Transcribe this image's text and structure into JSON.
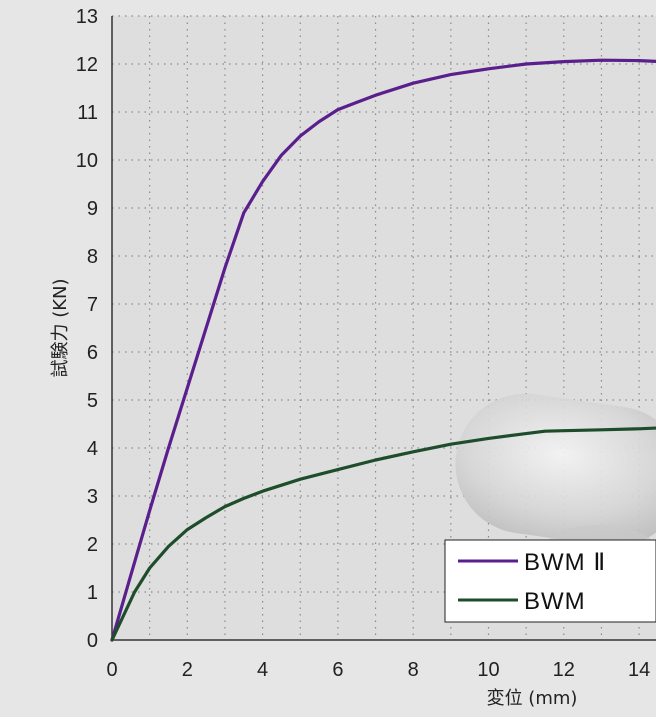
{
  "chart_data": {
    "type": "line",
    "xlabel": "変位 (mm)",
    "ylabel": "試験力 (KN)",
    "xlim": [
      0,
      14.6
    ],
    "ylim": [
      0,
      13
    ],
    "x_ticks": [
      "0",
      "2",
      "4",
      "6",
      "8",
      "10",
      "12",
      "14"
    ],
    "y_ticks": [
      "0",
      "1",
      "2",
      "3",
      "4",
      "5",
      "6",
      "7",
      "8",
      "9",
      "10",
      "11",
      "12",
      "13"
    ],
    "grid": true,
    "legend_position": "bottom-right",
    "series": [
      {
        "name": "BWM Ⅱ",
        "color": "#5a1f8c",
        "x": [
          0,
          0.5,
          1.0,
          1.5,
          2.0,
          2.5,
          3.0,
          3.5,
          4.0,
          4.5,
          5.0,
          5.5,
          6.0,
          6.5,
          7.0,
          8.0,
          9.0,
          10.0,
          11.0,
          12.0,
          13.0,
          14.0,
          14.6
        ],
        "y": [
          0,
          1.35,
          2.7,
          4.0,
          5.25,
          6.5,
          7.75,
          8.9,
          9.55,
          10.1,
          10.5,
          10.8,
          11.05,
          11.2,
          11.35,
          11.6,
          11.78,
          11.9,
          12.0,
          12.05,
          12.08,
          12.07,
          12.05
        ]
      },
      {
        "name": "BWM",
        "color": "#1e4d2b",
        "x": [
          0,
          0.3,
          0.6,
          1.0,
          1.5,
          2.0,
          2.5,
          3.0,
          3.5,
          4.0,
          5.0,
          6.0,
          7.0,
          8.0,
          9.0,
          10.0,
          11.0,
          11.5,
          12.0,
          13.0,
          14.0,
          14.6
        ],
        "y": [
          0,
          0.5,
          1.0,
          1.5,
          1.95,
          2.3,
          2.55,
          2.78,
          2.95,
          3.1,
          3.35,
          3.55,
          3.75,
          3.92,
          4.08,
          4.2,
          4.3,
          4.35,
          4.36,
          4.38,
          4.4,
          4.42
        ]
      }
    ]
  }
}
